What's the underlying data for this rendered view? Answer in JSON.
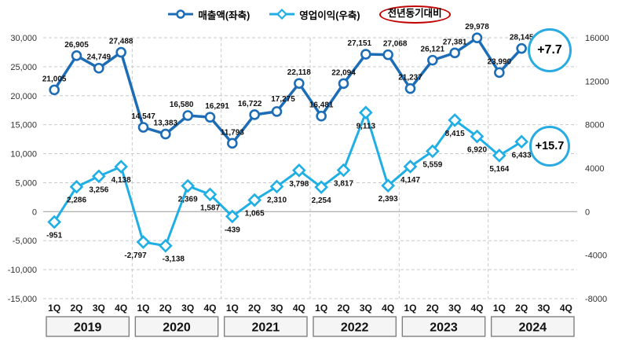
{
  "legend": {
    "items": [
      {
        "label": "매출액(좌축)"
      },
      {
        "label": "영업이익(우축)"
      }
    ],
    "yoy_label": "전년동기대비"
  },
  "callouts": {
    "revenue_yoy": "+7.7",
    "profit_yoy": "+15.7"
  },
  "colors": {
    "revenue": "#1d6db6",
    "profit": "#1fafe5",
    "callout_ring": "#29abe2",
    "yoy_ring": "#c00000",
    "grid": "#c9c9c9",
    "zero_line": "#a6a6a6",
    "axis_text": "#333333",
    "label_text": "#111111",
    "year_box_fill": "#f5f5f5",
    "year_box_border": "#808080"
  },
  "chart_data": {
    "type": "line",
    "categories": [
      "1Q",
      "2Q",
      "3Q",
      "4Q",
      "1Q",
      "2Q",
      "3Q",
      "4Q",
      "1Q",
      "2Q",
      "3Q",
      "4Q",
      "1Q",
      "2Q",
      "3Q",
      "4Q",
      "1Q",
      "2Q",
      "3Q",
      "4Q",
      "1Q",
      "2Q",
      "3Q",
      "4Q"
    ],
    "year_groups": [
      "2019",
      "2020",
      "2021",
      "2022",
      "2023",
      "2024"
    ],
    "series": [
      {
        "name": "매출액(좌축)",
        "axis": "left",
        "marker": "circle",
        "values": [
          21005,
          26905,
          24749,
          27488,
          14547,
          13383,
          16580,
          16291,
          11793,
          16722,
          17275,
          22118,
          16481,
          22094,
          27151,
          27068,
          21237,
          26121,
          27381,
          29978,
          23990,
          28145
        ]
      },
      {
        "name": "영업이익(우축)",
        "axis": "right",
        "marker": "diamond",
        "values": [
          -951,
          2286,
          3256,
          4138,
          -2797,
          -3138,
          2369,
          1587,
          -439,
          1065,
          2310,
          3798,
          2254,
          3817,
          9113,
          2393,
          4147,
          5559,
          8415,
          6920,
          5164,
          6433
        ]
      }
    ],
    "left_axis": {
      "min": -15000,
      "max": 30000,
      "step": 5000,
      "ticks": [
        "30,000",
        "25,000",
        "20,000",
        "15,000",
        "10,000",
        "5,000",
        "0",
        "-5,000",
        "-10,000",
        "-15,000"
      ]
    },
    "right_axis": {
      "min": -8000,
      "max": 16000,
      "step": 4000,
      "ticks": [
        "16000",
        "12000",
        "8000",
        "4000",
        "0",
        "-4000",
        "-8000"
      ]
    },
    "grid": true,
    "legend_position": "top"
  }
}
